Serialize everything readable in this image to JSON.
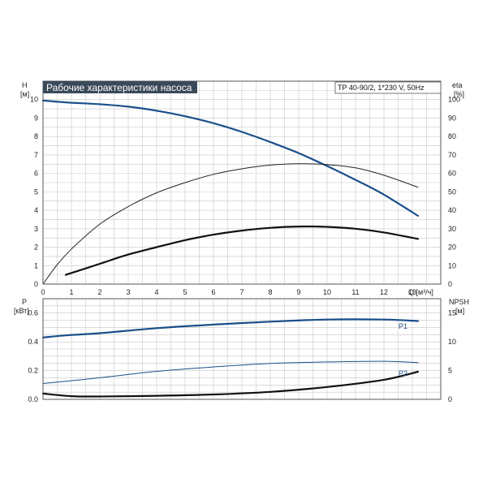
{
  "chart_data": [
    {
      "type": "line",
      "title": "Рабочие характеристики насоса",
      "model_label": "TP 40-90/2, 1*230 V, 50Hz",
      "y_left_label": [
        "H",
        "[м]"
      ],
      "y_right_label": [
        "eta",
        "[%]"
      ],
      "x_label": "Q [м³/ч]",
      "xlim": [
        0,
        14
      ],
      "ylim_left": [
        0,
        11
      ],
      "ylim_right": [
        0,
        110
      ],
      "x_ticks": [
        "0",
        "1",
        "2",
        "3",
        "4",
        "5",
        "6",
        "7",
        "8",
        "9",
        "10",
        "11",
        "12",
        "13"
      ],
      "y_left_ticks": [
        "0",
        "1",
        "2",
        "3",
        "4",
        "5",
        "6",
        "7",
        "8",
        "9",
        "10"
      ],
      "y_right_ticks": [
        "0",
        "10",
        "20",
        "30",
        "40",
        "50",
        "60",
        "70",
        "80",
        "90",
        "100"
      ],
      "grid": true,
      "series": [
        {
          "axis": "left",
          "color": "#1a4f8a",
          "width": 2.2,
          "x": [
            0,
            0.8,
            2,
            3,
            4,
            5,
            6,
            7,
            8,
            9,
            10,
            11,
            12,
            13.2
          ],
          "y": [
            9.95,
            9.85,
            9.75,
            9.62,
            9.4,
            9.1,
            8.72,
            8.25,
            7.7,
            7.1,
            6.4,
            5.65,
            4.85,
            3.7
          ]
        },
        {
          "axis": "left",
          "color": "#222222",
          "width": 1,
          "x": [
            0,
            0.5,
            1,
            2,
            3,
            4,
            5,
            6,
            7,
            8,
            9,
            10,
            11,
            12,
            13.2
          ],
          "y": [
            0,
            1.05,
            1.9,
            3.25,
            4.2,
            4.95,
            5.5,
            5.95,
            6.25,
            6.45,
            6.52,
            6.48,
            6.3,
            5.9,
            5.25
          ]
        },
        {
          "axis": "left",
          "color": "#111111",
          "width": 2.2,
          "x": [
            0.8,
            2,
            3,
            4,
            5,
            6,
            7,
            8,
            9,
            10,
            11,
            12,
            13.2
          ],
          "y": [
            0.5,
            1.1,
            1.6,
            2.0,
            2.38,
            2.68,
            2.9,
            3.05,
            3.12,
            3.1,
            3.0,
            2.8,
            2.45
          ]
        }
      ]
    },
    {
      "type": "line",
      "y_left_label": [
        "P",
        "[кВт]"
      ],
      "y_right_label": [
        "NPSH",
        "[м]"
      ],
      "xlim": [
        0,
        14
      ],
      "ylim_left": [
        0,
        0.7
      ],
      "ylim_right": [
        0,
        17.5
      ],
      "y_left_ticks": [
        "0.0",
        "0.2",
        "0.4",
        "0.6"
      ],
      "y_right_ticks": [
        "0",
        "5",
        "10",
        "15"
      ],
      "grid": true,
      "series": [
        {
          "name": "P1",
          "axis": "left",
          "color": "#1a4f8a",
          "width": 2.2,
          "x": [
            0,
            0.8,
            2,
            4,
            6,
            8,
            10,
            12,
            13.2
          ],
          "y": [
            0.43,
            0.445,
            0.46,
            0.495,
            0.52,
            0.54,
            0.555,
            0.555,
            0.545
          ]
        },
        {
          "name": "P2",
          "axis": "left",
          "color": "#1a4f8a",
          "width": 1,
          "x": [
            0,
            2,
            4,
            6,
            8,
            10,
            12,
            13.2
          ],
          "y": [
            0.11,
            0.15,
            0.195,
            0.225,
            0.25,
            0.26,
            0.265,
            0.255
          ]
        },
        {
          "axis": "right",
          "color": "#111111",
          "width": 2.2,
          "x": [
            0,
            1,
            2,
            4,
            6,
            8,
            10,
            12,
            13.2
          ],
          "y": [
            1.0,
            0.55,
            0.5,
            0.62,
            0.85,
            1.3,
            2.15,
            3.4,
            4.8
          ]
        }
      ]
    }
  ]
}
